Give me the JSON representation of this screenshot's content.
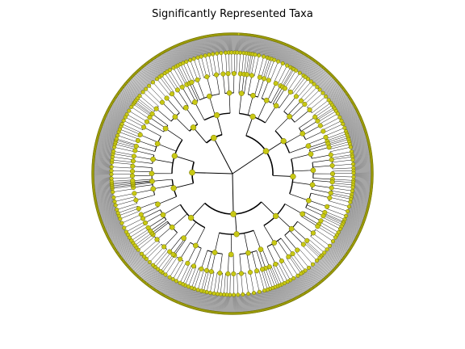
{
  "figure": {
    "title": "Significantly Represented Taxa"
  },
  "tree": {
    "layout": "radial",
    "levels": 7,
    "node_color": "#c8c814",
    "node_edge_color": "#6b6b00",
    "branch_color": "#000000"
  }
}
